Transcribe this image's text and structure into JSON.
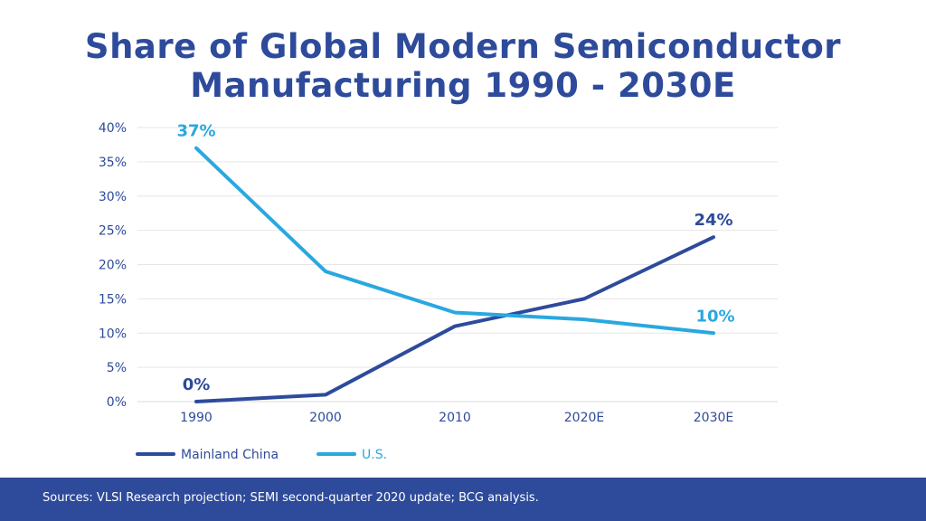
{
  "title_lines": [
    "Share of Global Modern Semiconductor",
    "Manufacturing 1990 - 2030E"
  ],
  "source": "Sources: VLSI Research projection; SEMI second-quarter 2020 update; BCG analysis.",
  "colors": {
    "title": "#2e4b9b",
    "china": "#2e4b9b",
    "us": "#29a8e0",
    "footer": "#2e4b9b",
    "grid": "#e6e6e6",
    "axis_text": "#2e4b9b"
  },
  "chart_data": {
    "type": "line",
    "categories": [
      "1990",
      "2000",
      "2010",
      "2020E",
      "2030E"
    ],
    "ylim": [
      0,
      40
    ],
    "yticks": [
      "0%",
      "5%",
      "10%",
      "15%",
      "20%",
      "25%",
      "30%",
      "35%",
      "40%"
    ],
    "grid": true,
    "legend_position": "bottom-left",
    "series": [
      {
        "name": "Mainland China",
        "color": "#2e4b9b",
        "values": [
          0,
          1,
          11,
          15,
          24
        ],
        "labels": [
          {
            "index": 0,
            "text": "0%"
          },
          {
            "index": 4,
            "text": "24%"
          }
        ]
      },
      {
        "name": "U.S.",
        "color": "#29a8e0",
        "values": [
          37,
          19,
          13,
          12,
          10
        ],
        "labels": [
          {
            "index": 0,
            "text": "37%"
          },
          {
            "index": 4,
            "text": "10%"
          }
        ]
      }
    ]
  }
}
